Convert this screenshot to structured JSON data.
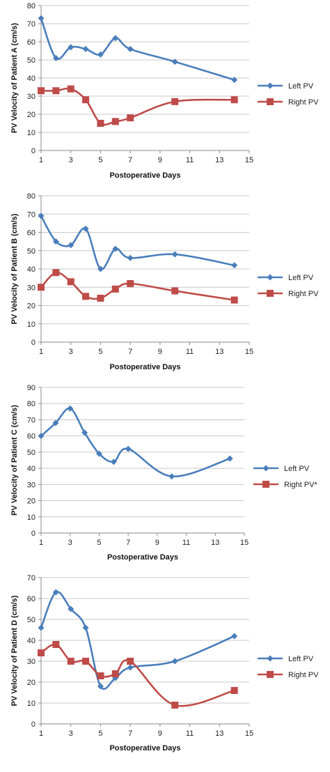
{
  "colors": {
    "left": "#4a7ebb",
    "right": "#be4b48",
    "grid": "#c8c8c8",
    "axis": "#888888"
  },
  "chart_data": [
    {
      "type": "line",
      "ylabel": "PV Velocity of Patient A (cm/s)",
      "xlabel": "Postoperative Days",
      "xlim": [
        1,
        15
      ],
      "xticks": [
        1,
        3,
        5,
        7,
        9,
        11,
        13,
        15
      ],
      "ylim": [
        0,
        80
      ],
      "yticks": [
        0,
        10,
        20,
        30,
        40,
        50,
        60,
        70,
        80
      ],
      "grid": "horizontal",
      "legend_position": "right",
      "series": [
        {
          "name": "Left PV",
          "marker": "diamond",
          "points": [
            [
              1,
              73
            ],
            [
              2,
              51
            ],
            [
              3,
              57
            ],
            [
              4,
              56
            ],
            [
              5,
              53
            ],
            [
              6,
              62
            ],
            [
              7,
              56
            ],
            [
              10,
              49
            ],
            [
              14,
              39
            ]
          ]
        },
        {
          "name": "Right PV",
          "marker": "square",
          "points": [
            [
              1,
              33
            ],
            [
              2,
              33
            ],
            [
              3,
              34
            ],
            [
              4,
              28
            ],
            [
              5,
              15
            ],
            [
              6,
              16
            ],
            [
              7,
              18
            ],
            [
              10,
              27
            ],
            [
              14,
              28
            ]
          ]
        }
      ]
    },
    {
      "type": "line",
      "ylabel": "PV Velocity of Patient B (cm/s)",
      "xlabel": "Postoperative Days",
      "xlim": [
        1,
        15
      ],
      "xticks": [
        1,
        3,
        5,
        7,
        9,
        11,
        13,
        15
      ],
      "ylim": [
        0,
        80
      ],
      "yticks": [
        0,
        10,
        20,
        30,
        40,
        50,
        60,
        70,
        80
      ],
      "grid": "horizontal",
      "legend_position": "right",
      "series": [
        {
          "name": "Left PV",
          "marker": "diamond",
          "points": [
            [
              1,
              69
            ],
            [
              2,
              55
            ],
            [
              3,
              53
            ],
            [
              4,
              62
            ],
            [
              5,
              40
            ],
            [
              6,
              51
            ],
            [
              7,
              46
            ],
            [
              10,
              48
            ],
            [
              14,
              42
            ]
          ]
        },
        {
          "name": "Right PV",
          "marker": "square",
          "points": [
            [
              1,
              30
            ],
            [
              2,
              38
            ],
            [
              3,
              33
            ],
            [
              4,
              25
            ],
            [
              5,
              24
            ],
            [
              6,
              29
            ],
            [
              7,
              32
            ],
            [
              10,
              28
            ],
            [
              14,
              23
            ]
          ]
        }
      ]
    },
    {
      "type": "line",
      "ylabel": "PV Velocity of Patient C (cm/s)",
      "xlabel": "Postoperative Days",
      "xlim": [
        1,
        15
      ],
      "xticks": [
        1,
        3,
        5,
        7,
        9,
        11,
        13,
        15
      ],
      "ylim": [
        0,
        90
      ],
      "yticks": [
        0,
        10,
        20,
        30,
        40,
        50,
        60,
        70,
        80,
        90
      ],
      "grid": "horizontal",
      "legend_position": "right",
      "series": [
        {
          "name": "Left PV",
          "marker": "diamond",
          "points": [
            [
              1,
              60
            ],
            [
              2,
              68
            ],
            [
              3,
              77
            ],
            [
              4,
              62
            ],
            [
              5,
              49
            ],
            [
              6,
              44
            ],
            [
              7,
              52
            ],
            [
              10,
              35
            ],
            [
              14,
              46
            ]
          ]
        },
        {
          "name": "Right PV*",
          "marker": "square",
          "points": []
        }
      ]
    },
    {
      "type": "line",
      "ylabel": "PV Velocity of Patient D (cm/s)",
      "xlabel": "Postoperative Days",
      "xlim": [
        1,
        15
      ],
      "xticks": [
        1,
        3,
        5,
        7,
        9,
        11,
        13,
        15
      ],
      "ylim": [
        0,
        70
      ],
      "yticks": [
        0,
        10,
        20,
        30,
        40,
        50,
        60,
        70
      ],
      "grid": "horizontal",
      "legend_position": "right",
      "series": [
        {
          "name": "Left PV",
          "marker": "diamond",
          "points": [
            [
              1,
              46
            ],
            [
              2,
              63
            ],
            [
              3,
              55
            ],
            [
              4,
              46
            ],
            [
              5,
              18
            ],
            [
              6,
              22
            ],
            [
              7,
              27
            ],
            [
              10,
              30
            ],
            [
              14,
              42
            ]
          ]
        },
        {
          "name": "Right PV",
          "marker": "square",
          "points": [
            [
              1,
              34
            ],
            [
              2,
              38
            ],
            [
              3,
              30
            ],
            [
              4,
              30
            ],
            [
              5,
              23
            ],
            [
              6,
              24
            ],
            [
              7,
              30
            ],
            [
              10,
              9
            ],
            [
              14,
              16
            ]
          ]
        }
      ]
    }
  ]
}
